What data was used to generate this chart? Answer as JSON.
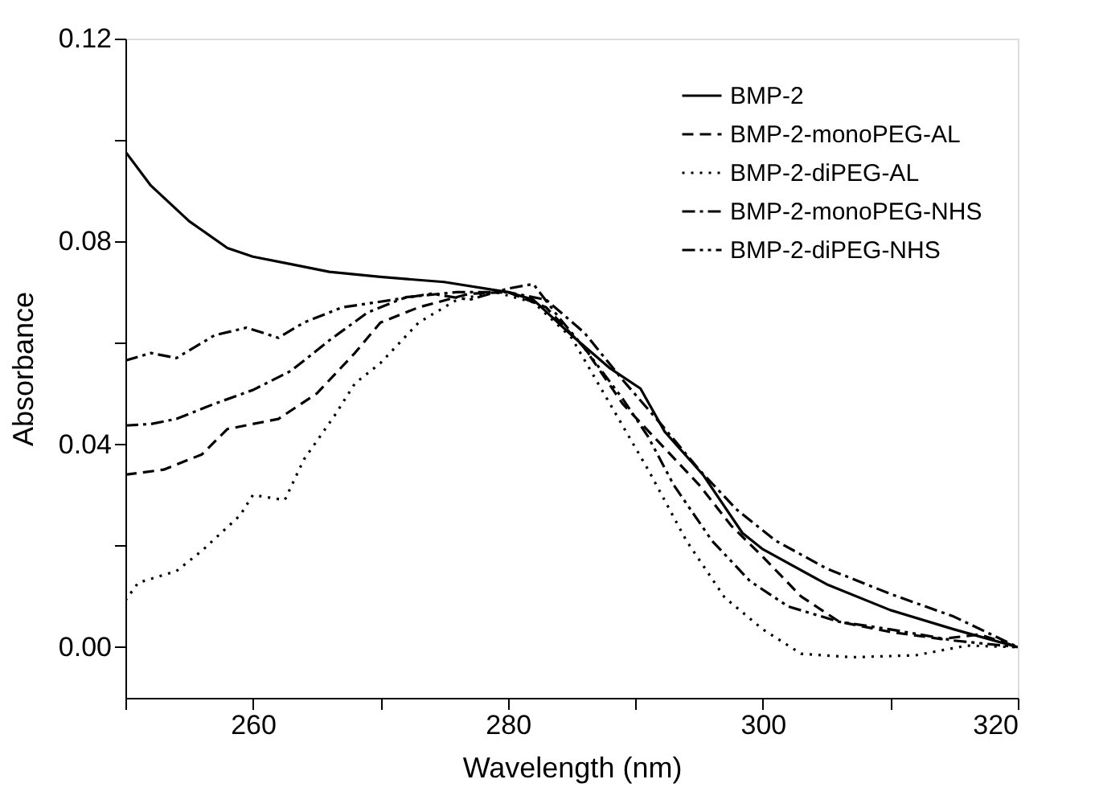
{
  "chart_data": {
    "type": "line",
    "xlabel": "Wavelength (nm)",
    "ylabel": "Absorbance",
    "xlim": [
      250,
      320
    ],
    "ylim": [
      -0.01,
      0.12
    ],
    "xticks": [
      {
        "value": 250,
        "label": null
      },
      260,
      {
        "value": 270,
        "label": null
      },
      280,
      {
        "value": 290,
        "label": null
      },
      300,
      {
        "value": 310,
        "label": null
      },
      320
    ],
    "yticks": [
      {
        "value": 0,
        "label": "0.00"
      },
      {
        "value": 0.02,
        "label": null
      },
      0.04,
      {
        "value": 0.06,
        "label": null
      },
      0.08,
      {
        "value": 0.1,
        "label": null
      },
      0.12
    ],
    "grid": false,
    "legend": "top right",
    "marker": "none",
    "series": [
      {
        "name": "BMP-2",
        "color": "#000000",
        "line_style": "solid",
        "x": [
          250,
          252,
          255,
          258,
          260,
          263,
          266,
          270,
          275,
          280,
          282,
          285,
          288,
          290.4,
          292.3,
          295.3,
          298.4,
          300,
          305,
          310,
          315,
          320
        ],
        "values": [
          0.0977,
          0.091,
          0.084,
          0.0787,
          0.077,
          0.0755,
          0.074,
          0.073,
          0.072,
          0.07,
          0.0685,
          0.0615,
          0.055,
          0.051,
          0.0425,
          0.034,
          0.0225,
          0.0193,
          0.0124,
          0.0073,
          0.0035,
          0.0
        ]
      },
      {
        "name": "BMP-2-monoPEG-AL",
        "color": "#000000",
        "line_style": "dashed",
        "x": [
          250,
          253,
          256,
          258,
          262,
          265,
          268,
          270,
          273,
          277,
          280,
          283,
          286,
          289,
          292,
          295,
          297.5,
          300,
          303,
          306,
          310,
          314,
          317,
          320
        ],
        "values": [
          0.034,
          0.035,
          0.038,
          0.043,
          0.045,
          0.05,
          0.058,
          0.064,
          0.067,
          0.0697,
          0.07,
          0.067,
          0.059,
          0.048,
          0.04,
          0.032,
          0.024,
          0.0178,
          0.01,
          0.005,
          0.003,
          0.0016,
          0.0025,
          0.0
        ]
      },
      {
        "name": "BMP-2-diPEG-AL",
        "color": "#000000",
        "line_style": "dotted",
        "x": [
          250,
          251,
          254,
          256,
          259,
          260,
          262.5,
          264,
          266.5,
          268,
          270,
          273,
          276,
          279,
          282,
          285,
          288,
          291,
          294,
          297,
          300,
          303,
          307,
          312,
          316,
          320
        ],
        "values": [
          0.0092,
          0.0127,
          0.015,
          0.019,
          0.026,
          0.03,
          0.029,
          0.037,
          0.046,
          0.052,
          0.056,
          0.064,
          0.0685,
          0.07,
          0.068,
          0.061,
          0.048,
          0.035,
          0.021,
          0.0098,
          0.0035,
          -0.0013,
          -0.002,
          -0.0016,
          0.0003,
          0.0
        ]
      },
      {
        "name": "BMP-2-monoPEG-NHS",
        "color": "#000000",
        "line_style": "dashdot",
        "x": [
          250,
          252,
          254,
          257,
          260,
          263,
          266,
          269,
          272,
          276,
          280,
          283,
          286,
          289,
          292,
          295,
          298,
          301,
          305,
          310,
          315,
          320
        ],
        "values": [
          0.0437,
          0.044,
          0.045,
          0.048,
          0.0507,
          0.0545,
          0.0605,
          0.066,
          0.069,
          0.07,
          0.07,
          0.0685,
          0.062,
          0.0527,
          0.044,
          0.035,
          0.027,
          0.021,
          0.0155,
          0.0105,
          0.006,
          0.0
        ]
      },
      {
        "name": "BMP-2-diPEG-NHS",
        "color": "#000000",
        "line_style": "dashdotdot",
        "x": [
          250,
          252,
          254,
          257,
          259.5,
          262,
          264,
          267,
          271,
          274,
          277,
          280,
          282,
          284,
          286,
          289,
          291,
          293,
          296,
          299,
          302,
          306,
          310,
          315,
          320
        ],
        "values": [
          0.0565,
          0.058,
          0.057,
          0.0615,
          0.063,
          0.061,
          0.064,
          0.067,
          0.0685,
          0.0697,
          0.0685,
          0.0707,
          0.0716,
          0.065,
          0.059,
          0.049,
          0.0415,
          0.032,
          0.021,
          0.013,
          0.008,
          0.005,
          0.0035,
          0.0013,
          0.0
        ]
      }
    ]
  }
}
